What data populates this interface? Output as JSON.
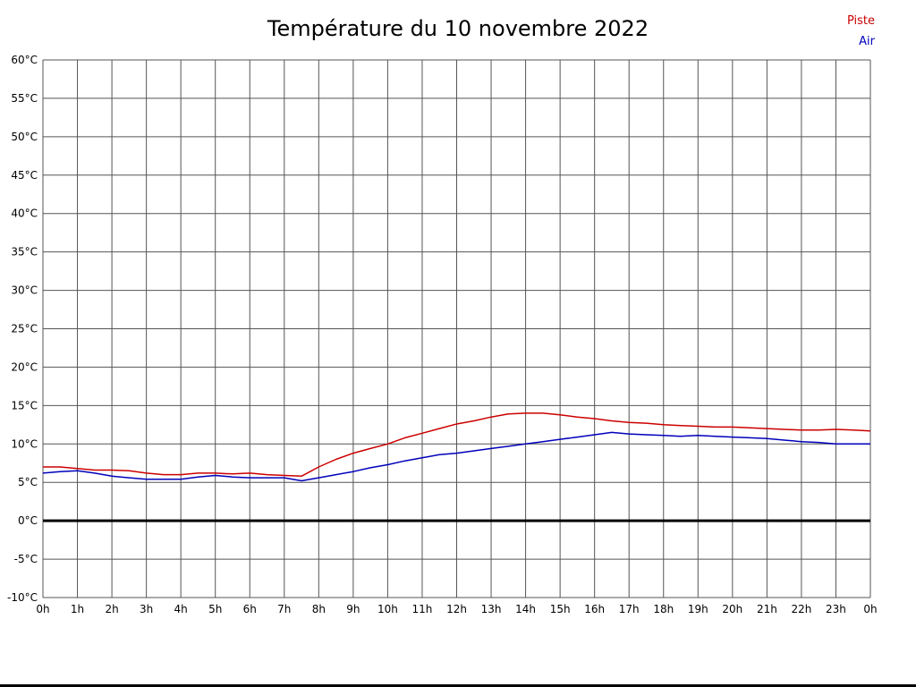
{
  "chart_data": {
    "type": "line",
    "title": "Température du 10 novembre 2022",
    "xlabel": "",
    "ylabel": "",
    "xlim": [
      0,
      24
    ],
    "ylim": [
      -10,
      60
    ],
    "grid": true,
    "legend_position": "top-right",
    "colors": {
      "background": "#ffffff",
      "grid": "#555555",
      "axis_text": "#000000",
      "zero_line": "#000000",
      "border": "#000000"
    },
    "x_ticks": [
      0,
      1,
      2,
      3,
      4,
      5,
      6,
      7,
      8,
      9,
      10,
      11,
      12,
      13,
      14,
      15,
      16,
      17,
      18,
      19,
      20,
      21,
      22,
      23,
      24
    ],
    "x_tick_labels": [
      "0h",
      "1h",
      "2h",
      "3h",
      "4h",
      "5h",
      "6h",
      "7h",
      "8h",
      "9h",
      "10h",
      "11h",
      "12h",
      "13h",
      "14h",
      "15h",
      "16h",
      "17h",
      "18h",
      "19h",
      "20h",
      "21h",
      "22h",
      "23h",
      "0h"
    ],
    "y_ticks": [
      60,
      55,
      50,
      45,
      40,
      35,
      30,
      25,
      20,
      15,
      10,
      5,
      0,
      -5,
      -10
    ],
    "y_tick_labels": [
      "60°C",
      "55°C",
      "50°C",
      "45°C",
      "40°C",
      "35°C",
      "30°C",
      "25°C",
      "20°C",
      "15°C",
      "10°C",
      "5°C",
      "0°C",
      "-5°C",
      "-10°C"
    ],
    "zero_line": {
      "value": 0,
      "width": 3
    },
    "x": [
      0,
      0.5,
      1,
      1.5,
      2,
      2.5,
      3,
      3.5,
      4,
      4.5,
      5,
      5.5,
      6,
      6.5,
      7,
      7.5,
      8,
      8.5,
      9,
      9.5,
      10,
      10.5,
      11,
      11.5,
      12,
      12.5,
      13,
      13.5,
      14,
      14.5,
      15,
      15.5,
      16,
      16.5,
      17,
      17.5,
      18,
      18.5,
      19,
      19.5,
      20,
      20.5,
      21,
      21.5,
      22,
      22.5,
      23,
      23.5,
      24
    ],
    "series": [
      {
        "name": "Piste",
        "color": "#cc0000",
        "values": [
          7.0,
          7.0,
          6.8,
          6.6,
          6.6,
          6.5,
          6.2,
          6.0,
          6.0,
          6.2,
          6.2,
          6.1,
          6.2,
          6.0,
          5.9,
          5.8,
          7.0,
          8.0,
          8.8,
          9.4,
          10.0,
          10.8,
          11.4,
          12.0,
          12.6,
          13.0,
          13.5,
          13.9,
          14.0,
          14.0,
          13.8,
          13.5,
          13.3,
          13.0,
          12.8,
          12.7,
          12.5,
          12.4,
          12.3,
          12.2,
          12.2,
          12.1,
          12.0,
          11.9,
          11.8,
          11.8,
          11.9,
          11.8,
          11.7
        ]
      },
      {
        "name": "Air",
        "color": "#0000bb",
        "values": [
          6.2,
          6.4,
          6.5,
          6.2,
          5.8,
          5.6,
          5.4,
          5.4,
          5.4,
          5.7,
          5.9,
          5.7,
          5.6,
          5.6,
          5.6,
          5.2,
          5.6,
          6.0,
          6.4,
          6.9,
          7.3,
          7.8,
          8.2,
          8.6,
          8.8,
          9.1,
          9.4,
          9.7,
          10.0,
          10.3,
          10.6,
          10.9,
          11.2,
          11.5,
          11.3,
          11.2,
          11.1,
          11.0,
          11.1,
          11.0,
          10.9,
          10.8,
          10.7,
          10.5,
          10.3,
          10.2,
          10.0,
          10.0,
          10.0
        ]
      }
    ]
  }
}
